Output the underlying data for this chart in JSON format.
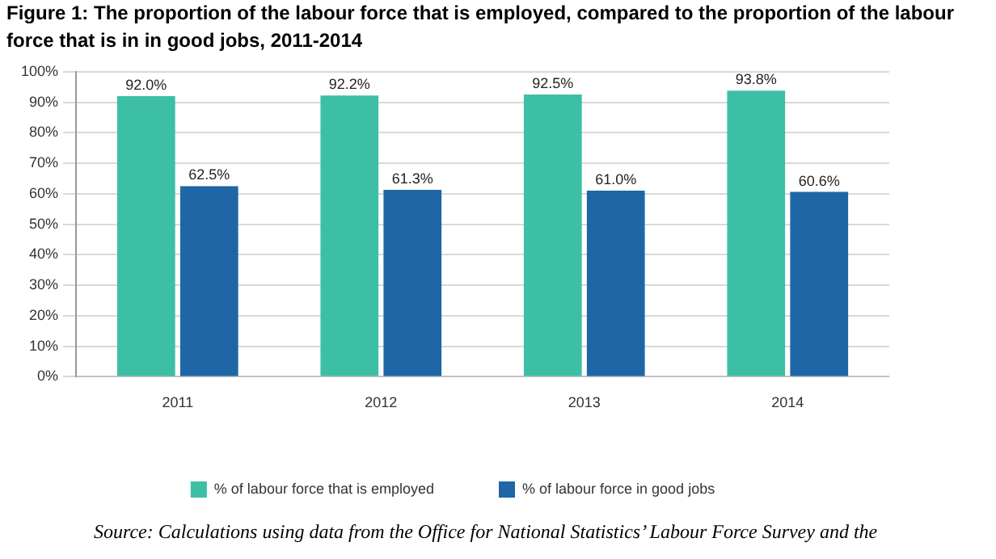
{
  "chart_data": {
    "type": "bar",
    "title": "Figure 1: The proportion of the labour force that is employed, compared to the proportion of the labour force that is in in good jobs, 2011-2014",
    "categories": [
      "2011",
      "2012",
      "2013",
      "2014"
    ],
    "series": [
      {
        "name": "% of labour force that is employed",
        "color": "#3dbfa5",
        "values": [
          92.0,
          92.2,
          92.5,
          93.8
        ],
        "value_labels": [
          "92.0%",
          "92.2%",
          "92.5%",
          "93.8%"
        ]
      },
      {
        "name": "% of labour force in good jobs",
        "color": "#1f66a6",
        "values": [
          62.5,
          61.3,
          61.0,
          60.6
        ],
        "value_labels": [
          "62.5%",
          "61.3%",
          "61.0%",
          "60.6%"
        ]
      }
    ],
    "ylim": [
      0,
      100
    ],
    "yticks": [
      {
        "value": 0,
        "label": "0%"
      },
      {
        "value": 10,
        "label": "10%"
      },
      {
        "value": 20,
        "label": "20%"
      },
      {
        "value": 30,
        "label": "30%"
      },
      {
        "value": 40,
        "label": "40%"
      },
      {
        "value": 50,
        "label": "50%"
      },
      {
        "value": 60,
        "label": "60%"
      },
      {
        "value": 70,
        "label": "70%"
      },
      {
        "value": 80,
        "label": "80%"
      },
      {
        "value": 90,
        "label": "90%"
      },
      {
        "value": 100,
        "label": "100%"
      }
    ],
    "grid": "y",
    "legend": "bottom",
    "annotations": [
      "Source: Calculations using data from the Office for National Statistics’ Labour Force Survey and the"
    ]
  }
}
